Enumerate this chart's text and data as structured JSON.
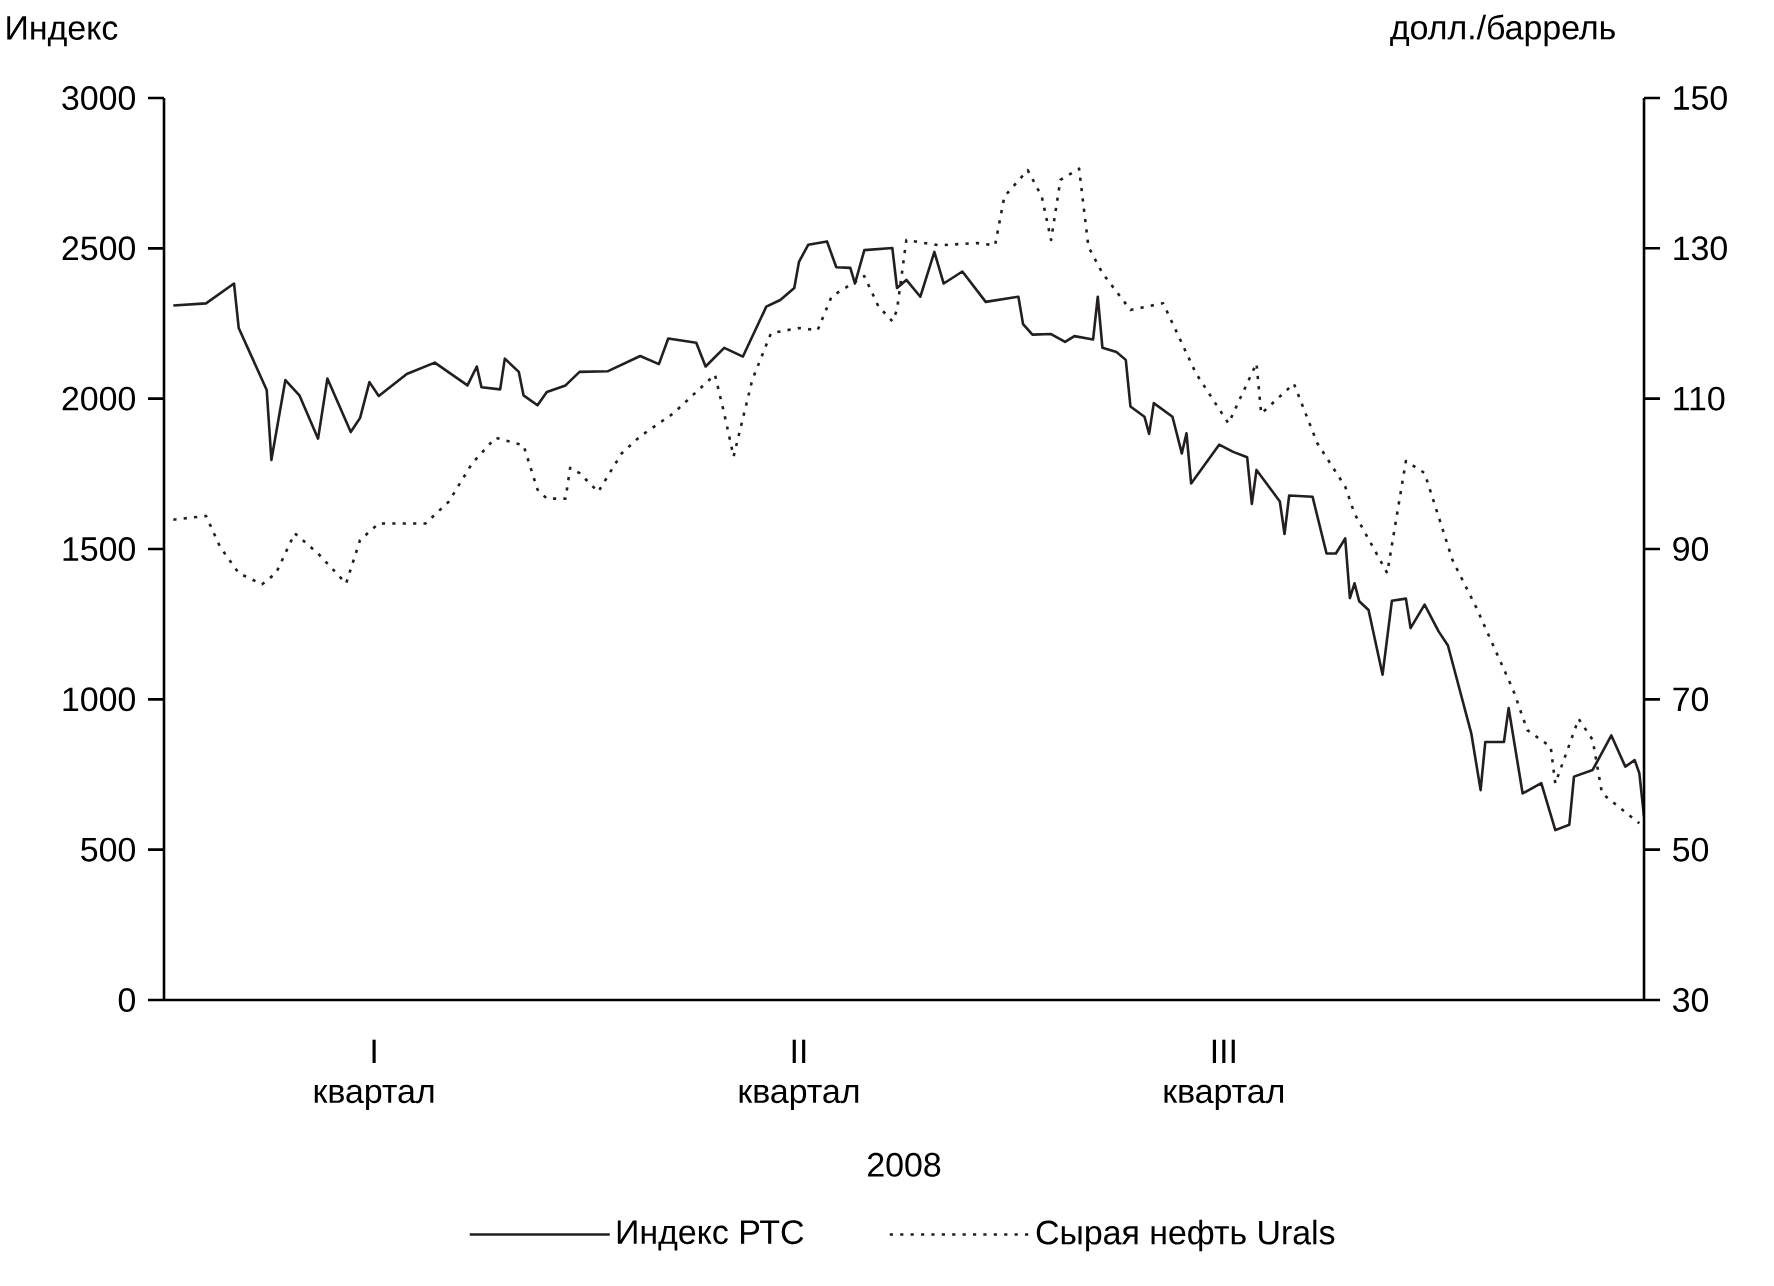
{
  "chart_data": {
    "type": "line",
    "xlabel": "2008",
    "ylabel": "Индекс",
    "y2label": "долл./баррель",
    "categories": [
      null,
      null,
      null,
      null,
      null,
      null,
      null,
      null,
      null,
      null,
      null,
      null,
      null,
      null,
      null,
      null,
      null,
      null,
      null,
      null,
      null,
      null,
      null,
      null,
      null,
      null,
      null,
      null,
      null,
      null,
      null,
      null,
      null,
      null,
      null,
      null,
      null,
      null,
      null,
      null,
      null,
      null,
      null,
      null,
      null,
      "I квартал",
      null,
      null,
      null,
      null,
      null,
      null,
      null,
      null,
      null,
      null,
      null,
      null,
      null,
      null,
      null,
      null,
      null,
      null,
      null,
      null,
      null,
      null,
      null,
      null,
      null,
      null,
      null,
      null,
      null,
      null,
      null,
      null,
      null,
      null,
      null,
      null,
      null,
      null,
      null,
      null,
      null,
      null,
      null,
      null,
      null,
      null,
      null,
      null,
      null,
      null,
      null,
      null,
      null,
      null,
      null,
      null,
      null,
      null,
      null,
      null,
      null,
      null,
      null,
      null,
      null,
      null,
      null,
      null,
      null,
      null,
      null,
      null,
      null,
      null,
      null,
      null,
      null,
      null,
      null,
      null,
      null,
      null,
      null,
      null,
      null,
      null,
      null,
      null,
      null,
      null,
      "II квартал",
      null,
      null,
      null,
      null,
      null,
      null,
      null,
      null,
      null,
      null,
      null,
      null,
      null,
      null,
      null,
      null,
      null,
      null,
      null,
      null,
      null,
      null,
      null,
      null,
      null,
      null,
      null,
      null,
      null,
      null,
      null,
      null,
      null,
      null,
      null,
      null,
      null,
      null,
      null,
      null,
      null,
      null,
      null,
      null,
      null,
      null,
      null,
      null,
      null,
      null,
      null,
      null,
      null,
      null,
      null,
      null,
      null,
      null,
      null,
      null,
      null,
      null,
      null,
      null,
      null,
      null,
      null,
      null,
      null,
      null,
      null,
      null,
      null,
      null,
      null,
      null,
      null,
      null,
      null,
      null,
      null,
      null,
      null,
      null,
      null,
      null,
      null,
      null,
      null,
      null,
      "III квартал",
      null,
      null,
      null,
      null,
      null,
      null,
      null,
      null,
      null,
      null,
      null,
      null,
      null,
      null,
      null,
      null,
      null,
      null,
      null,
      null,
      null,
      null,
      null,
      null,
      null,
      null,
      null,
      null,
      null,
      null,
      null,
      null,
      null,
      null,
      null,
      null,
      null,
      null,
      null,
      null,
      null,
      null,
      null,
      null,
      null,
      null,
      null,
      null,
      null,
      null,
      null,
      null,
      null,
      null,
      null,
      null,
      null,
      null,
      null,
      null,
      null,
      null,
      null,
      null,
      null,
      null,
      null,
      null,
      null,
      null,
      null,
      null,
      null,
      null,
      null,
      null,
      null,
      null,
      null,
      null,
      null,
      null,
      null,
      null,
      null,
      null,
      null,
      null,
      null,
      null
    ],
    "ylim": [
      0,
      3000
    ],
    "yticks": [
      0,
      500,
      1000,
      1500,
      2000,
      2500,
      3000
    ],
    "y2lim": [
      30,
      150
    ],
    "y2ticks": [
      30,
      50,
      70,
      90,
      110,
      130,
      150
    ],
    "legend": "bottom",
    "grid": false,
    "series": [
      {
        "name": "Индекс РТС",
        "color": "#231f20",
        "line_style": "solid",
        "values": [
          null,
          null,
          2310,
          null,
          null,
          null,
          null,
          null,
          null,
          2317,
          null,
          null,
          null,
          null,
          null,
          2383,
          2235,
          null,
          null,
          null,
          null,
          null,
          2029,
          1796,
          null,
          null,
          2062,
          null,
          null,
          2011,
          null,
          null,
          null,
          1867,
          null,
          2067,
          null,
          null,
          null,
          null,
          1889,
          null,
          1936,
          null,
          2055,
          null,
          2009,
          null,
          null,
          null,
          null,
          null,
          2082,
          null,
          null,
          null,
          null,
          null,
          2120,
          null,
          null,
          null,
          null,
          null,
          null,
          2044,
          null,
          2107,
          2038,
          null,
          null,
          null,
          2031,
          2133,
          null,
          null,
          2089,
          2011,
          null,
          null,
          1978,
          null,
          2022,
          null,
          null,
          null,
          2044,
          null,
          null,
          2089,
          null,
          null,
          null,
          null,
          null,
          2091,
          null,
          null,
          null,
          null,
          null,
          null,
          2142,
          null,
          null,
          null,
          2115,
          null,
          2200,
          null,
          null,
          null,
          null,
          null,
          2186,
          null,
          2107,
          null,
          null,
          null,
          2169,
          null,
          null,
          null,
          2140,
          null,
          null,
          null,
          null,
          2306,
          null,
          null,
          2328,
          null,
          null,
          2368,
          2455,
          null,
          2512,
          null,
          null,
          null,
          2523,
          null,
          2437,
          null,
          null,
          2435,
          2383,
          null,
          2494,
          null,
          null,
          null,
          null,
          null,
          2501,
          2368,
          null,
          2395,
          null,
          null,
          2339,
          null,
          null,
          2488,
          null,
          2383,
          null,
          null,
          null,
          2423,
          null,
          null,
          null,
          null,
          2322,
          null,
          null,
          null,
          null,
          null,
          null,
          2339,
          2248,
          null,
          2213,
          null,
          null,
          null,
          2215,
          null,
          null,
          2189,
          null,
          2208,
          null,
          null,
          null,
          2197,
          2339,
          2169,
          null,
          null,
          2155,
          null,
          2129,
          1974,
          null,
          null,
          1940,
          1883,
          1985,
          null,
          null,
          null,
          1940,
          null,
          1818,
          1885,
          1718,
          null,
          null,
          null,
          null,
          null,
          1847,
          null,
          null,
          1823,
          null,
          null,
          1805,
          1650,
          1763,
          null,
          null,
          null,
          null,
          1658,
          1550,
          1678,
          null,
          null,
          null,
          null,
          1674,
          null,
          null,
          1485,
          null,
          1485,
          null,
          1535,
          1337,
          1386,
          1326,
          null,
          1297,
          null,
          null,
          1082,
          null,
          1328,
          null,
          null,
          1335,
          1237,
          null,
          null,
          1315,
          null,
          null,
          1226,
          null,
          1179,
          null,
          null,
          null,
          null,
          887,
          null,
          698,
          858,
          null,
          null,
          null,
          858,
          971,
          null,
          null,
          687,
          null,
          null,
          null,
          721,
          null,
          null,
          565,
          null,
          null,
          583,
          743,
          null,
          null,
          null,
          765,
          null,
          null,
          null,
          880,
          null,
          null,
          776,
          null,
          798,
          754,
          610
        ]
      },
      {
        "name": "Сырая нефть Urals",
        "color": "#231f20",
        "line_style": "dotted",
        "axis": "y2",
        "values": [
          null,
          null,
          93.9,
          null,
          null,
          null,
          null,
          null,
          null,
          94.4,
          null,
          null,
          90.3,
          null,
          null,
          null,
          86.8,
          null,
          null,
          null,
          null,
          85.3,
          null,
          null,
          86.8,
          null,
          null,
          null,
          92.1,
          null,
          null,
          null,
          null,
          89.4,
          null,
          null,
          null,
          null,
          null,
          85.4,
          null,
          null,
          91.2,
          null,
          null,
          null,
          93.4,
          null,
          null,
          null,
          null,
          null,
          null,
          null,
          null,
          null,
          93.4,
          null,
          null,
          null,
          null,
          96.3,
          null,
          null,
          null,
          null,
          101.4,
          null,
          null,
          null,
          null,
          104.8,
          null,
          null,
          null,
          null,
          null,
          103.8,
          null,
          null,
          97.9,
          null,
          96.7,
          null,
          null,
          null,
          96.7,
          100.8,
          null,
          100.1,
          null,
          null,
          null,
          97.6,
          null,
          null,
          null,
          null,
          102.7,
          null,
          null,
          null,
          105.0,
          null,
          null,
          null,
          null,
          null,
          null,
          108.0,
          null,
          null,
          null,
          null,
          null,
          null,
          null,
          null,
          113.2,
          null,
          108.0,
          null,
          102.3,
          null,
          null,
          null,
          112.5,
          null,
          null,
          null,
          118.7,
          null,
          null,
          null,
          null,
          null,
          119.4,
          null,
          null,
          null,
          119.1,
          null,
          null,
          123.6,
          null,
          null,
          null,
          null,
          null,
          null,
          126.3,
          null,
          null,
          122.3,
          null,
          null,
          120.3,
          121.8,
          null,
          131.1,
          null,
          null,
          null,
          null,
          null,
          null,
          130.4,
          null,
          null,
          null,
          null,
          null,
          null,
          null,
          130.7,
          null,
          null,
          null,
          130.4,
          null,
          136.9,
          null,
          null,
          null,
          null,
          140.4,
          null,
          null,
          136.9,
          null,
          131.1,
          null,
          139.1,
          null,
          null,
          null,
          140.6,
          null,
          130.2,
          null,
          null,
          126.7,
          null,
          null,
          null,
          null,
          null,
          121.8,
          null,
          null,
          null,
          null,
          null,
          null,
          122.7,
          null,
          null,
          null,
          null,
          null,
          null,
          113.4,
          null,
          null,
          null,
          null,
          null,
          null,
          106.7,
          null,
          null,
          null,
          null,
          null,
          114.7,
          108.0,
          null,
          null,
          null,
          null,
          null,
          null,
          112.0,
          null,
          null,
          null,
          null,
          104.1,
          null,
          null,
          null,
          null,
          null,
          98.3,
          null,
          94.7,
          null,
          null,
          null,
          null,
          null,
          null,
          86.8,
          null,
          null,
          null,
          101.7,
          null,
          null,
          null,
          100.1,
          null,
          null,
          null,
          null,
          null,
          88.5,
          null,
          null,
          null,
          null,
          82.3,
          null,
          null,
          null,
          null,
          null,
          null,
          null,
          71.2,
          null,
          null,
          65.9,
          null,
          null,
          null,
          null,
          63.7,
          58.8,
          null,
          null,
          null,
          null,
          67.4,
          null,
          null,
          64.6,
          null,
          57.5,
          null,
          null,
          null,
          null,
          null,
          null,
          null,
          53.5,
          null
        ]
      }
    ]
  }
}
